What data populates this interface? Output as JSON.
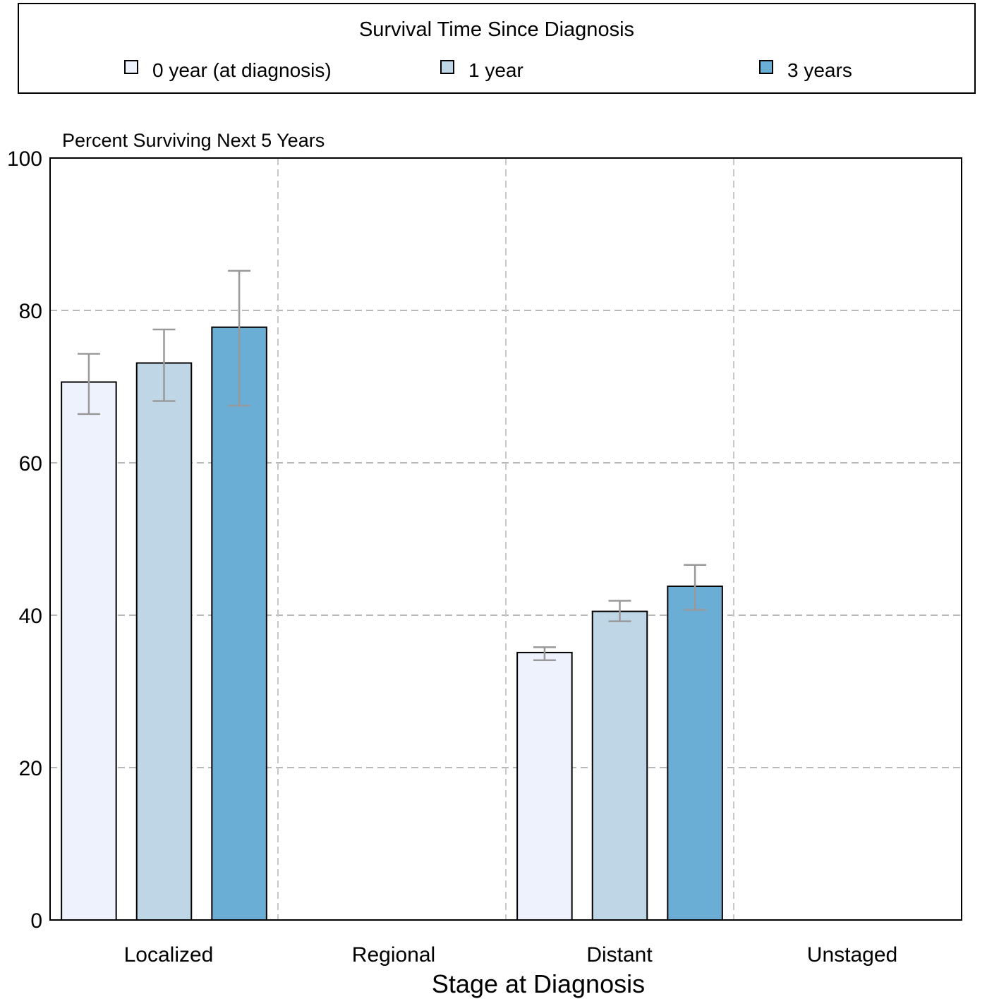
{
  "chart_data": {
    "type": "bar",
    "title": "",
    "legend_title": "Survival Time Since Diagnosis",
    "legend_position": "top",
    "ylabel": "Percent Surviving Next 5 Years",
    "xlabel": "Stage at Diagnosis",
    "ylim": [
      0,
      100
    ],
    "yticks": [
      0,
      20,
      40,
      60,
      80,
      100
    ],
    "grid": true,
    "categories": [
      "Localized",
      "Regional",
      "Distant",
      "Unstaged"
    ],
    "series": [
      {
        "name": "0 year (at diagnosis)",
        "color": "#eef2fd",
        "values": [
          70.6,
          null,
          35.1,
          null
        ],
        "error_low": [
          66.4,
          null,
          34.1,
          null
        ],
        "error_high": [
          74.3,
          null,
          35.8,
          null
        ]
      },
      {
        "name": "1 year",
        "color": "#bed6e6",
        "values": [
          73.1,
          null,
          40.5,
          null
        ],
        "error_low": [
          68.1,
          null,
          39.2,
          null
        ],
        "error_high": [
          77.5,
          null,
          41.9,
          null
        ]
      },
      {
        "name": "3 years",
        "color": "#6aaed6",
        "values": [
          77.8,
          null,
          43.8,
          null
        ],
        "error_low": [
          67.5,
          null,
          40.7,
          null
        ],
        "error_high": [
          85.2,
          null,
          46.6,
          null
        ]
      }
    ]
  }
}
